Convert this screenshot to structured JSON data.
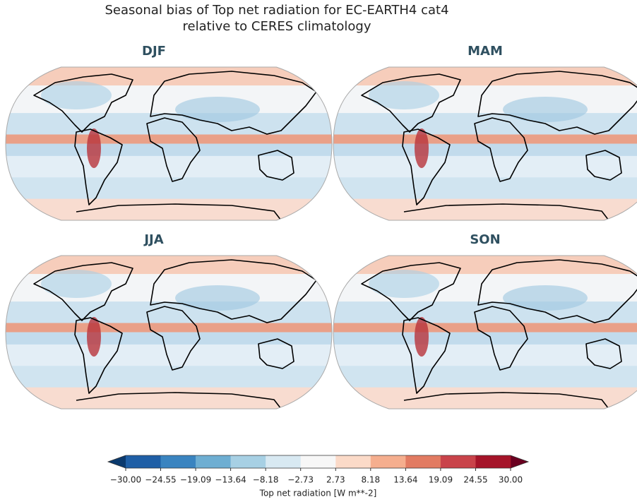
{
  "title_lines": [
    "Seasonal bias of Top net radiation for EC-EARTH4 cat4",
    "relative to CERES climatology"
  ],
  "panels": [
    {
      "title": "DJF"
    },
    {
      "title": "MAM"
    },
    {
      "title": "JJA"
    },
    {
      "title": "SON"
    }
  ],
  "colorbar": {
    "label": "Top net radiation [W m**-2]",
    "ticks": [
      {
        "value": -30,
        "label": "−30.00"
      },
      {
        "value": -24.55,
        "label": "−24.55"
      },
      {
        "value": -19.09,
        "label": "−19.09"
      },
      {
        "value": -13.64,
        "label": "−13.64"
      },
      {
        "value": -8.18,
        "label": "−8.18"
      },
      {
        "value": -2.73,
        "label": "−2.73"
      },
      {
        "value": 2.73,
        "label": "2.73"
      },
      {
        "value": 8.18,
        "label": "8.18"
      },
      {
        "value": 13.64,
        "label": "13.64"
      },
      {
        "value": 19.09,
        "label": "19.09"
      },
      {
        "value": 24.55,
        "label": "24.55"
      },
      {
        "value": 30,
        "label": "30.00"
      }
    ],
    "colors": [
      "#1f5fa6",
      "#3a84c0",
      "#6eaed2",
      "#a7d0e4",
      "#d8e9f2",
      "#f7f7f7",
      "#fbdac8",
      "#f5ae8e",
      "#e27b62",
      "#c9434a",
      "#a51429"
    ],
    "extend_colors": [
      "#0b3a6e",
      "#6a0020"
    ]
  }
}
